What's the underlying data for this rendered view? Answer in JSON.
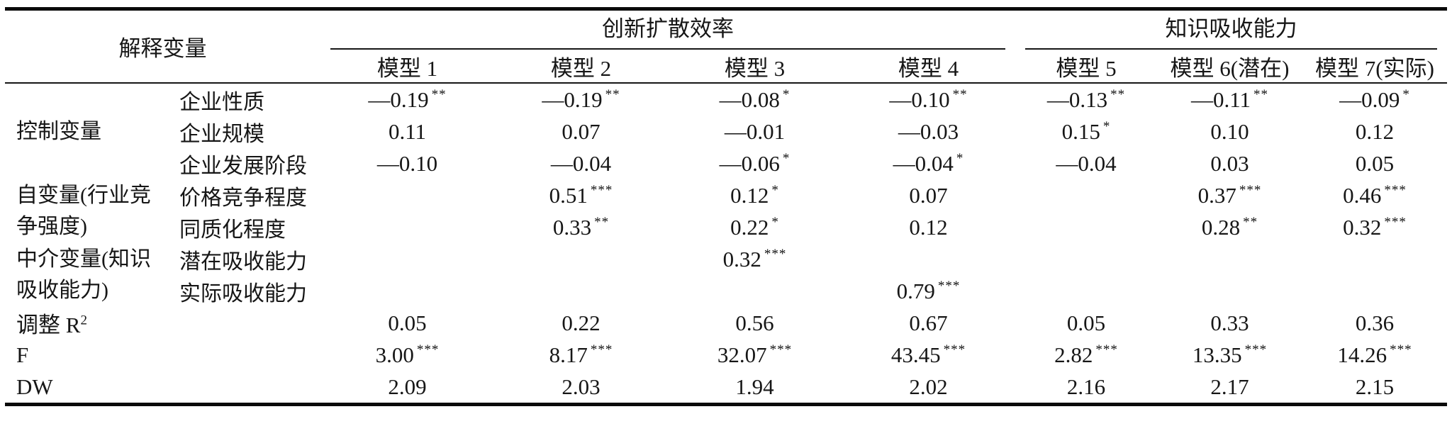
{
  "table": {
    "corner_header": "解释变量",
    "col_groups": [
      {
        "label": "创新扩散效率",
        "span": 4
      },
      {
        "label": "知识吸收能力",
        "span": 3
      }
    ],
    "model_headers": [
      "模型 1",
      "模型 2",
      "模型 3",
      "模型 4",
      "模型 5",
      "模型 6(潜在)",
      "模型 7(实际)"
    ],
    "rows": [
      {
        "group": "控制变量",
        "group_rowspan": 3,
        "variable": "企业性质",
        "values": [
          {
            "v": "—0.19",
            "s": "**"
          },
          {
            "v": "—0.19",
            "s": "**"
          },
          {
            "v": "—0.08",
            "s": "*"
          },
          {
            "v": "—0.10",
            "s": "**"
          },
          {
            "v": "—0.13",
            "s": "**"
          },
          {
            "v": "—0.11",
            "s": "**"
          },
          {
            "v": "—0.09",
            "s": "*"
          }
        ]
      },
      {
        "variable": "企业规模",
        "values": [
          {
            "v": "0.11",
            "s": ""
          },
          {
            "v": "0.07",
            "s": ""
          },
          {
            "v": "—0.01",
            "s": ""
          },
          {
            "v": "—0.03",
            "s": ""
          },
          {
            "v": "0.15",
            "s": "*"
          },
          {
            "v": "0.10",
            "s": ""
          },
          {
            "v": "0.12",
            "s": ""
          }
        ]
      },
      {
        "variable": "企业发展阶段",
        "values": [
          {
            "v": "—0.10",
            "s": ""
          },
          {
            "v": "—0.04",
            "s": ""
          },
          {
            "v": "—0.06",
            "s": "*"
          },
          {
            "v": "—0.04",
            "s": "*"
          },
          {
            "v": "—0.04",
            "s": ""
          },
          {
            "v": "0.03",
            "s": ""
          },
          {
            "v": "0.05",
            "s": ""
          }
        ]
      },
      {
        "group": "自变量(行业竞争强度)",
        "group_rowspan": 2,
        "variable": "价格竞争程度",
        "values": [
          {
            "v": "",
            "s": ""
          },
          {
            "v": "0.51",
            "s": "***"
          },
          {
            "v": "0.12",
            "s": "*"
          },
          {
            "v": "0.07",
            "s": ""
          },
          {
            "v": "",
            "s": ""
          },
          {
            "v": "0.37",
            "s": "***"
          },
          {
            "v": "0.46",
            "s": "***"
          }
        ]
      },
      {
        "variable": "同质化程度",
        "values": [
          {
            "v": "",
            "s": ""
          },
          {
            "v": "0.33",
            "s": "**"
          },
          {
            "v": "0.22",
            "s": "*"
          },
          {
            "v": "0.12",
            "s": ""
          },
          {
            "v": "",
            "s": ""
          },
          {
            "v": "0.28",
            "s": "**"
          },
          {
            "v": "0.32",
            "s": "***"
          }
        ]
      },
      {
        "group": "中介变量(知识吸收能力)",
        "group_rowspan": 2,
        "variable": "潜在吸收能力",
        "values": [
          {
            "v": "",
            "s": ""
          },
          {
            "v": "",
            "s": ""
          },
          {
            "v": "0.32",
            "s": "***"
          },
          {
            "v": "",
            "s": ""
          },
          {
            "v": "",
            "s": ""
          },
          {
            "v": "",
            "s": ""
          },
          {
            "v": "",
            "s": ""
          }
        ]
      },
      {
        "variable": "实际吸收能力",
        "values": [
          {
            "v": "",
            "s": ""
          },
          {
            "v": "",
            "s": ""
          },
          {
            "v": "",
            "s": ""
          },
          {
            "v": "0.79",
            "s": "***"
          },
          {
            "v": "",
            "s": ""
          },
          {
            "v": "",
            "s": ""
          },
          {
            "v": "",
            "s": ""
          }
        ]
      },
      {
        "label": "调整 R",
        "label_sup": "2",
        "label_colspan": 2,
        "values": [
          {
            "v": "0.05",
            "s": ""
          },
          {
            "v": "0.22",
            "s": ""
          },
          {
            "v": "0.56",
            "s": ""
          },
          {
            "v": "0.67",
            "s": ""
          },
          {
            "v": "0.05",
            "s": ""
          },
          {
            "v": "0.33",
            "s": ""
          },
          {
            "v": "0.36",
            "s": ""
          }
        ]
      },
      {
        "label": "F",
        "label_colspan": 2,
        "values": [
          {
            "v": "3.00",
            "s": "***"
          },
          {
            "v": "8.17",
            "s": "***"
          },
          {
            "v": "32.07",
            "s": "***"
          },
          {
            "v": "43.45",
            "s": "***"
          },
          {
            "v": "2.82",
            "s": "***"
          },
          {
            "v": "13.35",
            "s": "***"
          },
          {
            "v": "14.26",
            "s": "***"
          }
        ]
      },
      {
        "label": "DW",
        "label_colspan": 2,
        "values": [
          {
            "v": "2.09",
            "s": ""
          },
          {
            "v": "2.03",
            "s": ""
          },
          {
            "v": "1.94",
            "s": ""
          },
          {
            "v": "2.02",
            "s": ""
          },
          {
            "v": "2.16",
            "s": ""
          },
          {
            "v": "2.17",
            "s": ""
          },
          {
            "v": "2.15",
            "s": ""
          }
        ]
      }
    ]
  }
}
